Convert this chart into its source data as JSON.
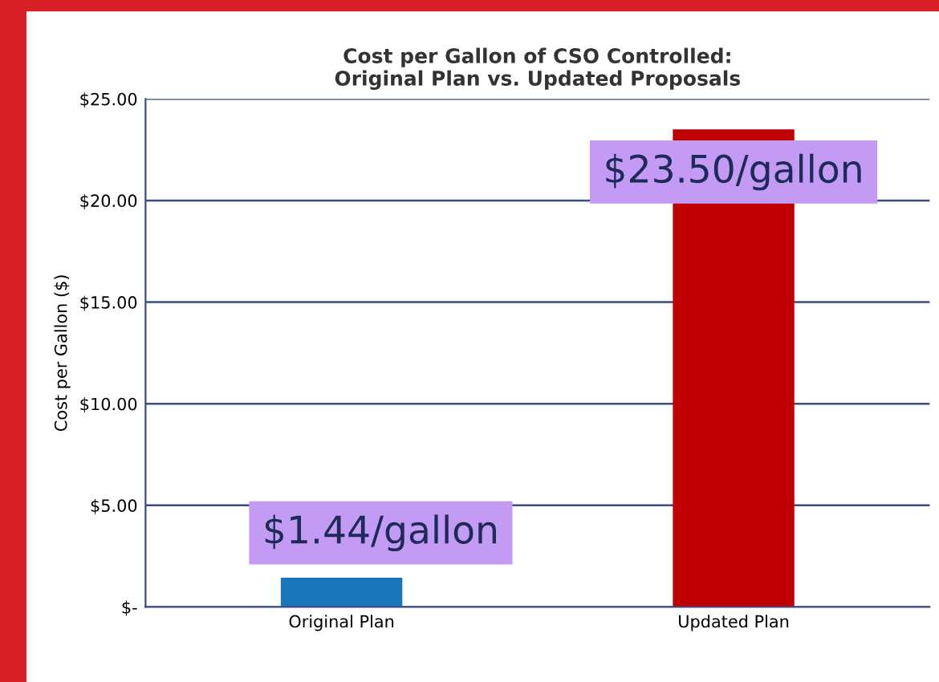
{
  "chart_data": {
    "type": "bar",
    "title": "Cost per Gallon of CSO Controlled:\nOriginal Plan vs. Updated Proposals",
    "ylabel": "Cost per Gallon ($)",
    "categories": [
      "Original Plan",
      "Updated Plan"
    ],
    "values": [
      1.44,
      23.5
    ],
    "colors": [
      "#1a75bb",
      "#c00000"
    ],
    "value_labels": [
      "$1.44/gallon",
      "$23.50/gallon"
    ],
    "ylim": [
      0,
      25
    ],
    "yticks": [
      {
        "value": 0,
        "label": "$-"
      },
      {
        "value": 5,
        "label": "$5.00"
      },
      {
        "value": 10,
        "label": "$10.00"
      },
      {
        "value": 15,
        "label": "$15.00"
      },
      {
        "value": 20,
        "label": "$20.00"
      },
      {
        "value": 25,
        "label": "$25.00"
      }
    ],
    "grid": "y"
  }
}
